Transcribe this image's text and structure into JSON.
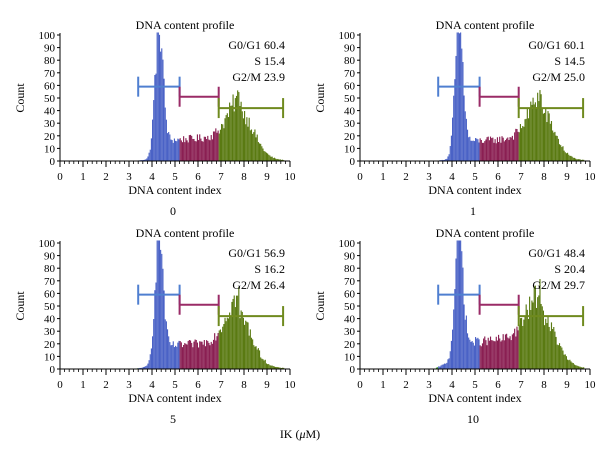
{
  "figure": {
    "footer_prefix": "IK (",
    "footer_unit_symbol": "μ",
    "footer_suffix": "M)"
  },
  "colors": {
    "g0g1": "#4a62c6",
    "s": "#8a1f52",
    "g2m": "#5a7a12",
    "sub": "#3a9a2a",
    "g0g1_bracket": "#4f7fd0",
    "s_bracket": "#9a2b67",
    "g2m_bracket": "#6f8a1e"
  },
  "chart_data": [
    {
      "type": "bar",
      "title": "DNA content profile",
      "xlabel": "DNA content index",
      "ylabel": "Count",
      "caption": "0",
      "xlim": [
        0,
        10
      ],
      "ylim": [
        0,
        100
      ],
      "xticks": [
        0,
        1,
        2,
        3,
        4,
        5,
        6,
        7,
        8,
        9,
        10
      ],
      "yticks": [
        0,
        10,
        20,
        30,
        40,
        50,
        60,
        70,
        80,
        90,
        100
      ],
      "annotations": [
        "G0/G1 60.4",
        "S 15.4",
        "G2/M 23.9"
      ],
      "gates": {
        "g0g1": [
          3.4,
          5.2
        ],
        "s": [
          5.2,
          6.9
        ],
        "g2m": [
          6.9,
          9.7
        ]
      },
      "profile": {
        "g1_peak": 4.3,
        "g1_height": 105,
        "g1_width": 0.17,
        "s_level": 18,
        "g2_peak": 7.9,
        "g2_height": 32,
        "g2_width": 0.55,
        "sub_level": 1
      }
    },
    {
      "type": "bar",
      "title": "DNA content profile",
      "xlabel": "DNA content index",
      "ylabel": "Count",
      "caption": "1",
      "xlim": [
        0,
        10
      ],
      "ylim": [
        0,
        100
      ],
      "xticks": [
        0,
        1,
        2,
        3,
        4,
        5,
        6,
        7,
        8,
        9,
        10
      ],
      "yticks": [
        0,
        10,
        20,
        30,
        40,
        50,
        60,
        70,
        80,
        90,
        100
      ],
      "annotations": [
        "G0/G1 60.1",
        "S 14.5",
        "G2/M 25.0"
      ],
      "gates": {
        "g0g1": [
          3.4,
          5.2
        ],
        "s": [
          5.2,
          6.9
        ],
        "g2m": [
          6.9,
          9.7
        ]
      },
      "profile": {
        "g1_peak": 4.3,
        "g1_height": 105,
        "g1_width": 0.17,
        "s_level": 17,
        "g2_peak": 7.9,
        "g2_height": 34,
        "g2_width": 0.55,
        "sub_level": 1
      }
    },
    {
      "type": "bar",
      "title": "DNA content profile",
      "xlabel": "DNA content index",
      "ylabel": "Count",
      "caption": "5",
      "xlim": [
        0,
        10
      ],
      "ylim": [
        0,
        100
      ],
      "xticks": [
        0,
        1,
        2,
        3,
        4,
        5,
        6,
        7,
        8,
        9,
        10
      ],
      "yticks": [
        0,
        10,
        20,
        30,
        40,
        50,
        60,
        70,
        80,
        90,
        100
      ],
      "annotations": [
        "G0/G1 56.9",
        "S 16.2",
        "G2/M 26.4"
      ],
      "gates": {
        "g0g1": [
          3.4,
          5.2
        ],
        "s": [
          5.2,
          6.9
        ],
        "g2m": [
          6.9,
          9.7
        ]
      },
      "profile": {
        "g1_peak": 4.3,
        "g1_height": 105,
        "g1_width": 0.17,
        "s_level": 20,
        "g2_peak": 7.8,
        "g2_height": 36,
        "g2_width": 0.55,
        "sub_level": 1.5
      }
    },
    {
      "type": "bar",
      "title": "DNA content profile",
      "xlabel": "DNA content index",
      "ylabel": "Count",
      "caption": "10",
      "xlim": [
        0,
        10
      ],
      "ylim": [
        0,
        100
      ],
      "xticks": [
        0,
        1,
        2,
        3,
        4,
        5,
        6,
        7,
        8,
        9,
        10
      ],
      "yticks": [
        0,
        10,
        20,
        30,
        40,
        50,
        60,
        70,
        80,
        90,
        100
      ],
      "annotations": [
        "G0/G1 48.4",
        "S 20.4",
        "G2/M 29.7"
      ],
      "gates": {
        "g0g1": [
          3.4,
          5.2
        ],
        "s": [
          5.2,
          6.9
        ],
        "g2m": [
          6.9,
          9.7
        ]
      },
      "profile": {
        "g1_peak": 4.3,
        "g1_height": 105,
        "g1_width": 0.17,
        "s_level": 23,
        "g2_peak": 7.9,
        "g2_height": 36,
        "g2_width": 0.6,
        "sub_level": 4
      }
    }
  ]
}
